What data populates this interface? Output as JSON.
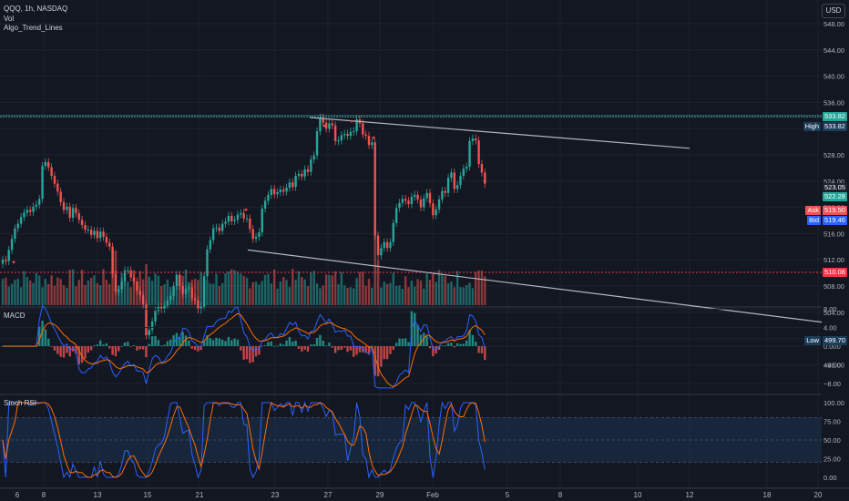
{
  "header": {
    "symbol_line": "QQQ, 1h, NASDAQ",
    "indicators": [
      "Vol",
      "Algo_Trend_Lines"
    ],
    "currency_button": "USD"
  },
  "colors": {
    "background": "#131722",
    "up": "#26a69a",
    "down": "#ef5350",
    "grid": "#1e222d",
    "trendline": "#b2b5be",
    "resistance": "#4db6ac",
    "support": "#f23645",
    "macd": "#2962ff",
    "signal": "#ff6d00",
    "stoch_k": "#2962ff",
    "stoch_d": "#ff6d00",
    "stoch_band": "#1e3350"
  },
  "price_axis": {
    "ticks": [
      "548.00",
      "544.00",
      "540.00",
      "536.00",
      "532.00",
      "528.00",
      "524.00",
      "520.00",
      "516.00",
      "512.00",
      "508.00",
      "504.00",
      "500.00",
      "496.00"
    ],
    "markers": [
      {
        "label": "",
        "value": "533.82",
        "color": "#26a69a"
      },
      {
        "label": "High",
        "value": "533.82",
        "color": "#1c3d5a"
      },
      {
        "label": "",
        "value": "523.05",
        "color": "#1e222d"
      },
      {
        "label": "",
        "value": "522.28",
        "color": "#26a69a"
      },
      {
        "label": "Ask",
        "value": "519.50",
        "color": "#ef5350"
      },
      {
        "label": "Bid",
        "value": "519.46",
        "color": "#2962ff"
      },
      {
        "label": "",
        "value": "510.08",
        "color": "#f23645"
      },
      {
        "label": "Low",
        "value": "499.70",
        "color": "#1c3d5a"
      }
    ]
  },
  "macd_panel": {
    "title": "MACD",
    "ticks": [
      "8.00",
      "4.00",
      "0.000",
      "−4.00",
      "−8.00"
    ]
  },
  "stoch_panel": {
    "title": "Stoch RSI",
    "ticks": [
      "100.00",
      "75.00",
      "50.00",
      "25.00",
      "0.00"
    ]
  },
  "time_axis": {
    "labels": [
      "6",
      "8",
      "13",
      "15",
      "21",
      "23",
      "27",
      "29",
      "Feb",
      "5",
      "8",
      "10",
      "12",
      "18",
      "20"
    ]
  },
  "chart_data": {
    "type": "candlestick",
    "symbol": "QQQ",
    "interval": "1h",
    "ylim": [
      494,
      551
    ],
    "resistance": 533.82,
    "support": 510.08,
    "candles_close": [
      512.0,
      511.8,
      513.5,
      515.2,
      516.8,
      517.5,
      518.5,
      519.2,
      519.6,
      519.3,
      520.1,
      520.4,
      521.3,
      526.3,
      526.9,
      526.1,
      524.8,
      523.6,
      522.4,
      520.8,
      519.6,
      520.1,
      518.4,
      519.9,
      519.1,
      518.1,
      517.3,
      516.6,
      516.6,
      515.8,
      516.4,
      515.3,
      516.3,
      515.5,
      514.6,
      514.0,
      509.8,
      507.1,
      507.5,
      508.7,
      510.4,
      510.4,
      509.3,
      508.7,
      507.3,
      506.6,
      505.2,
      500.5,
      501.3,
      502.6,
      504.2,
      504.8,
      504.5,
      505.0,
      505.8,
      506.5,
      508.0,
      509.7,
      508.0,
      506.8,
      507.6,
      507.8,
      506.1,
      505.8,
      504.4,
      504.9,
      509.5,
      513.6,
      515.0,
      516.8,
      516.9,
      516.4,
      517.5,
      517.8,
      518.7,
      517.9,
      518.1,
      518.9,
      519.1,
      518.3,
      518.3,
      516.7,
      515.2,
      515.5,
      516.2,
      519.8,
      521.0,
      521.9,
      522.8,
      522.0,
      522.3,
      522.7,
      522.4,
      523.0,
      523.8,
      523.1,
      524.8,
      525.1,
      524.7,
      525.8,
      525.4,
      527.3,
      527.9,
      531.6,
      533.7,
      532.9,
      532.0,
      532.8,
      532.5,
      530.1,
      530.2,
      531.0,
      531.2,
      530.9,
      531.5,
      531.6,
      533.4,
      532.8,
      531.1,
      530.9,
      529.5,
      529.9,
      515.7,
      512.7,
      513.8,
      514.7,
      513.8,
      514.7,
      517.6,
      519.9,
      520.7,
      521.3,
      521.0,
      520.5,
      521.6,
      521.9,
      521.2,
      520.0,
      521.4,
      522.2,
      520.6,
      518.8,
      519.7,
      521.2,
      522.5,
      522.2,
      524.5,
      525.3,
      522.8,
      523.4,
      524.8,
      525.9,
      526.2,
      530.1,
      530.5,
      530.2,
      526.6,
      525.3,
      523.6
    ],
    "series": [
      {
        "name": "MACD"
      },
      {
        "name": "Stoch RSI"
      }
    ]
  }
}
